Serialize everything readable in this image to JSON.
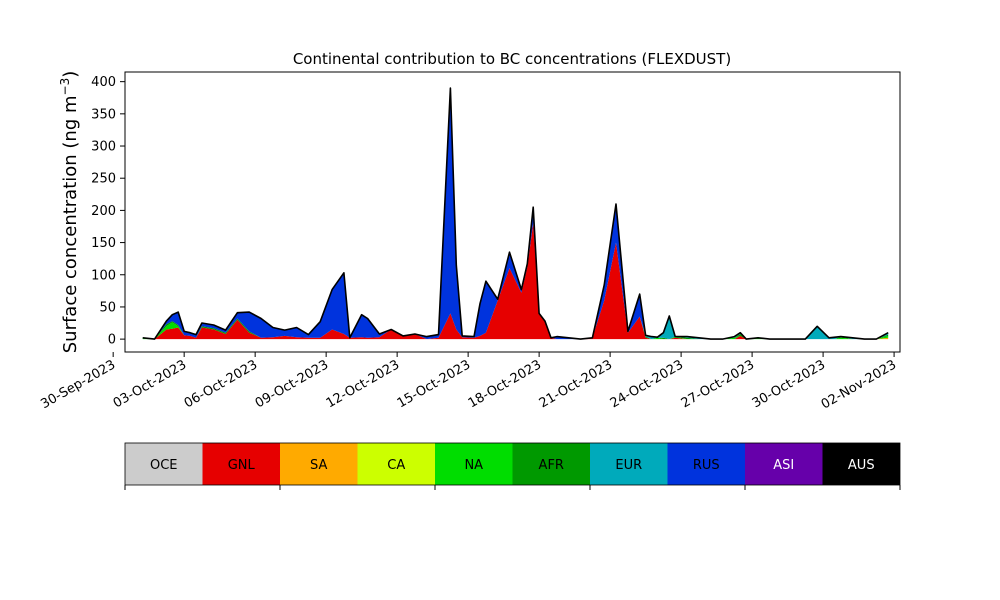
{
  "chart_data": {
    "type": "area",
    "stacked": true,
    "title": "Continental contribution to BC concentrations (FLEXDUST)",
    "ylabel": "Surface concentration (ng m",
    "ylabel_superscript": "−3",
    "ylabel_close": ")",
    "xlabel": "",
    "xlim": [
      "2023-09-30T12:00",
      "2023-11-02T06:00"
    ],
    "ylim": [
      -20,
      415
    ],
    "yticks": [
      0,
      50,
      100,
      150,
      200,
      250,
      300,
      350,
      400
    ],
    "xtick_labels": [
      "30-Sep-2023",
      "03-Oct-2023",
      "06-Oct-2023",
      "09-Oct-2023",
      "12-Oct-2023",
      "15-Oct-2023",
      "18-Oct-2023",
      "21-Oct-2023",
      "24-Oct-2023",
      "27-Oct-2023",
      "30-Oct-2023",
      "02-Nov-2023"
    ],
    "xtick_dates": [
      "2023-09-30",
      "2023-10-03",
      "2023-10-06",
      "2023-10-09",
      "2023-10-12",
      "2023-10-15",
      "2023-10-18",
      "2023-10-21",
      "2023-10-24",
      "2023-10-27",
      "2023-10-30",
      "2023-11-02"
    ],
    "legend_placement": "below",
    "grid": false,
    "x": [
      "2023-10-01T06:00",
      "2023-10-01T18:00",
      "2023-10-02T06:00",
      "2023-10-02T12:00",
      "2023-10-02T18:00",
      "2023-10-03T00:00",
      "2023-10-03T06:00",
      "2023-10-03T12:00",
      "2023-10-03T18:00",
      "2023-10-04T06:00",
      "2023-10-04T18:00",
      "2023-10-05T06:00",
      "2023-10-05T18:00",
      "2023-10-06T06:00",
      "2023-10-06T18:00",
      "2023-10-07T06:00",
      "2023-10-07T18:00",
      "2023-10-08T06:00",
      "2023-10-08T18:00",
      "2023-10-09T06:00",
      "2023-10-09T18:00",
      "2023-10-10T00:00",
      "2023-10-10T12:00",
      "2023-10-10T18:00",
      "2023-10-11T06:00",
      "2023-10-11T18:00",
      "2023-10-12T06:00",
      "2023-10-12T18:00",
      "2023-10-13T06:00",
      "2023-10-13T18:00",
      "2023-10-14T06:00",
      "2023-10-14T12:00",
      "2023-10-14T18:00",
      "2023-10-15T06:00",
      "2023-10-15T12:00",
      "2023-10-15T18:00",
      "2023-10-16T06:00",
      "2023-10-16T18:00",
      "2023-10-17T06:00",
      "2023-10-17T12:00",
      "2023-10-17T18:00",
      "2023-10-18T00:00",
      "2023-10-18T06:00",
      "2023-10-18T12:00",
      "2023-10-18T18:00",
      "2023-10-19T06:00",
      "2023-10-19T18:00",
      "2023-10-20T06:00",
      "2023-10-20T18:00",
      "2023-10-21T06:00",
      "2023-10-21T18:00",
      "2023-10-22T06:00",
      "2023-10-22T12:00",
      "2023-10-22T18:00",
      "2023-10-23T00:00",
      "2023-10-23T06:00",
      "2023-10-23T12:00",
      "2023-10-23T18:00",
      "2023-10-24T06:00",
      "2023-10-24T18:00",
      "2023-10-25T06:00",
      "2023-10-25T18:00",
      "2023-10-26T06:00",
      "2023-10-26T12:00",
      "2023-10-26T18:00",
      "2023-10-27T06:00",
      "2023-10-27T18:00",
      "2023-10-28T06:00",
      "2023-10-28T18:00",
      "2023-10-29T06:00",
      "2023-10-29T18:00",
      "2023-10-30T06:00",
      "2023-10-30T12:00",
      "2023-10-30T18:00",
      "2023-10-31T06:00",
      "2023-10-31T18:00",
      "2023-11-01T06:00",
      "2023-11-01T18:00"
    ],
    "series": [
      {
        "name": "OCE",
        "color": "#cccccc",
        "values": [
          0,
          0,
          0,
          0,
          0,
          0,
          0,
          0,
          0,
          0,
          0,
          0,
          0,
          0,
          0,
          0,
          0,
          0,
          0,
          0,
          0,
          0,
          0,
          0,
          0,
          0,
          0,
          0,
          0,
          0,
          0,
          0,
          0,
          0,
          0,
          0,
          0,
          0,
          0,
          0,
          0,
          0,
          0,
          0,
          0,
          0,
          0,
          0,
          0,
          0,
          0,
          0,
          0,
          0,
          0,
          0,
          0,
          0,
          0,
          0,
          0,
          0,
          0,
          0,
          0,
          0,
          0,
          0,
          0,
          0,
          0,
          0,
          0,
          0,
          0,
          0,
          0,
          0
        ]
      },
      {
        "name": "GNL",
        "color": "#e60000",
        "values": [
          0,
          0,
          15,
          16,
          18,
          6,
          5,
          2,
          18,
          15,
          8,
          30,
          10,
          2,
          3,
          5,
          3,
          2,
          2,
          15,
          8,
          2,
          3,
          2,
          3,
          15,
          5,
          8,
          0,
          2,
          40,
          15,
          3,
          2,
          5,
          10,
          60,
          110,
          72,
          112,
          180,
          40,
          28,
          2,
          0,
          0,
          0,
          2,
          60,
          150,
          10,
          35,
          2,
          0,
          0,
          0,
          0,
          2,
          0,
          0,
          0,
          0,
          0,
          5,
          0,
          0,
          0,
          0,
          0,
          0,
          0,
          0,
          0,
          0,
          0,
          0,
          0,
          0
        ]
      },
      {
        "name": "SA",
        "color": "#ffaa00",
        "values": [
          0,
          0,
          0,
          0,
          0,
          0,
          0,
          0,
          0,
          0,
          0,
          0,
          0,
          0,
          0,
          0,
          0,
          0,
          0,
          0,
          0,
          0,
          0,
          0,
          0,
          0,
          0,
          0,
          0,
          0,
          0,
          0,
          0,
          0,
          0,
          0,
          0,
          0,
          0,
          0,
          0,
          0,
          0,
          0,
          0,
          0,
          0,
          0,
          0,
          0,
          0,
          0,
          0,
          0,
          0,
          0,
          0,
          0,
          0,
          0,
          0,
          0,
          0,
          0,
          0,
          0,
          0,
          0,
          0,
          0,
          0,
          0,
          0,
          0,
          0,
          0,
          0,
          2
        ]
      },
      {
        "name": "CA",
        "color": "#ccff00",
        "values": [
          0,
          0,
          0,
          0,
          0,
          0,
          0,
          0,
          0,
          0,
          0,
          0,
          0,
          0,
          0,
          0,
          0,
          0,
          0,
          0,
          0,
          0,
          0,
          0,
          0,
          0,
          0,
          0,
          0,
          0,
          0,
          0,
          0,
          0,
          0,
          0,
          0,
          0,
          0,
          0,
          0,
          0,
          0,
          0,
          0,
          0,
          0,
          0,
          0,
          0,
          0,
          0,
          0,
          0,
          0,
          0,
          0,
          0,
          0,
          0,
          0,
          0,
          0,
          0,
          0,
          0,
          0,
          0,
          0,
          0,
          0,
          0,
          0,
          0,
          0,
          0,
          0,
          0
        ]
      },
      {
        "name": "NA",
        "color": "#00dd00",
        "values": [
          2,
          0,
          5,
          10,
          2,
          0,
          0,
          0,
          0,
          0,
          0,
          0,
          0,
          0,
          0,
          0,
          0,
          0,
          0,
          0,
          0,
          0,
          0,
          0,
          0,
          0,
          0,
          0,
          0,
          0,
          0,
          0,
          0,
          0,
          0,
          0,
          0,
          0,
          0,
          0,
          0,
          0,
          0,
          0,
          0,
          0,
          0,
          0,
          0,
          0,
          0,
          0,
          0,
          0,
          2,
          0,
          0,
          2,
          0,
          0,
          0,
          0,
          2,
          0,
          0,
          2,
          0,
          0,
          0,
          0,
          0,
          0,
          0,
          2,
          0,
          0,
          0,
          3
        ]
      },
      {
        "name": "AFR",
        "color": "#009900",
        "values": [
          0,
          0,
          3,
          2,
          2,
          0,
          0,
          0,
          2,
          2,
          2,
          2,
          2,
          0,
          0,
          0,
          0,
          0,
          0,
          0,
          0,
          0,
          0,
          0,
          0,
          0,
          0,
          0,
          0,
          0,
          0,
          0,
          0,
          0,
          0,
          0,
          0,
          0,
          0,
          0,
          0,
          0,
          0,
          0,
          0,
          0,
          0,
          0,
          0,
          0,
          0,
          0,
          2,
          0,
          0,
          2,
          0,
          0,
          2,
          0,
          0,
          0,
          0,
          3,
          0,
          0,
          0,
          0,
          0,
          0,
          0,
          0,
          0,
          2,
          0,
          0,
          0,
          2
        ]
      },
      {
        "name": "EUR",
        "color": "#00aabb",
        "values": [
          0,
          0,
          0,
          0,
          0,
          0,
          0,
          0,
          0,
          0,
          0,
          0,
          0,
          0,
          0,
          0,
          0,
          0,
          0,
          0,
          0,
          0,
          0,
          0,
          0,
          0,
          0,
          0,
          0,
          0,
          0,
          0,
          0,
          0,
          0,
          0,
          0,
          0,
          0,
          0,
          0,
          0,
          0,
          0,
          0,
          0,
          0,
          0,
          0,
          0,
          0,
          0,
          2,
          4,
          1,
          8,
          36,
          0,
          2,
          2,
          0,
          0,
          2,
          2,
          0,
          0,
          0,
          0,
          0,
          0,
          20,
          2,
          3,
          0,
          2,
          0,
          0,
          3
        ]
      },
      {
        "name": "RUS",
        "color": "#0033dd",
        "values": [
          0,
          0,
          5,
          10,
          20,
          6,
          5,
          5,
          5,
          5,
          4,
          9,
          30,
          30,
          15,
          9,
          15,
          5,
          25,
          62,
          95,
          0,
          35,
          30,
          5,
          0,
          0,
          0,
          4,
          5,
          350,
          100,
          2,
          2,
          50,
          80,
          2,
          25,
          5,
          5,
          25,
          0,
          0,
          0,
          4,
          2,
          0,
          0,
          24,
          60,
          2,
          35,
          0,
          0,
          0,
          0,
          0,
          0,
          0,
          0,
          0,
          0,
          0,
          0,
          0,
          0,
          0,
          0,
          0,
          0,
          0,
          0,
          0,
          0,
          0,
          0,
          0,
          0
        ]
      },
      {
        "name": "ASI",
        "color": "#6600aa",
        "values": [
          0,
          0,
          0,
          0,
          0,
          0,
          0,
          0,
          0,
          0,
          0,
          0,
          0,
          0,
          0,
          0,
          0,
          0,
          0,
          0,
          0,
          0,
          0,
          0,
          0,
          0,
          0,
          0,
          0,
          0,
          0,
          0,
          0,
          0,
          0,
          0,
          0,
          0,
          0,
          0,
          0,
          0,
          0,
          0,
          0,
          0,
          0,
          0,
          0,
          0,
          0,
          0,
          0,
          0,
          0,
          0,
          0,
          0,
          0,
          0,
          0,
          0,
          0,
          0,
          0,
          0,
          0,
          0,
          0,
          0,
          0,
          0,
          0,
          0,
          0,
          0,
          0,
          0
        ]
      },
      {
        "name": "AUS",
        "color": "#000000",
        "values": [
          0,
          0,
          0,
          0,
          0,
          0,
          0,
          0,
          0,
          0,
          0,
          0,
          0,
          0,
          0,
          0,
          0,
          0,
          0,
          0,
          0,
          0,
          0,
          0,
          0,
          0,
          0,
          0,
          0,
          0,
          0,
          0,
          0,
          0,
          0,
          0,
          0,
          0,
          0,
          0,
          0,
          0,
          0,
          0,
          0,
          0,
          0,
          0,
          0,
          0,
          0,
          0,
          0,
          0,
          0,
          0,
          0,
          0,
          0,
          0,
          0,
          0,
          0,
          0,
          0,
          0,
          0,
          0,
          0,
          0,
          0,
          0,
          0,
          0,
          0,
          0,
          0,
          0
        ]
      }
    ]
  }
}
